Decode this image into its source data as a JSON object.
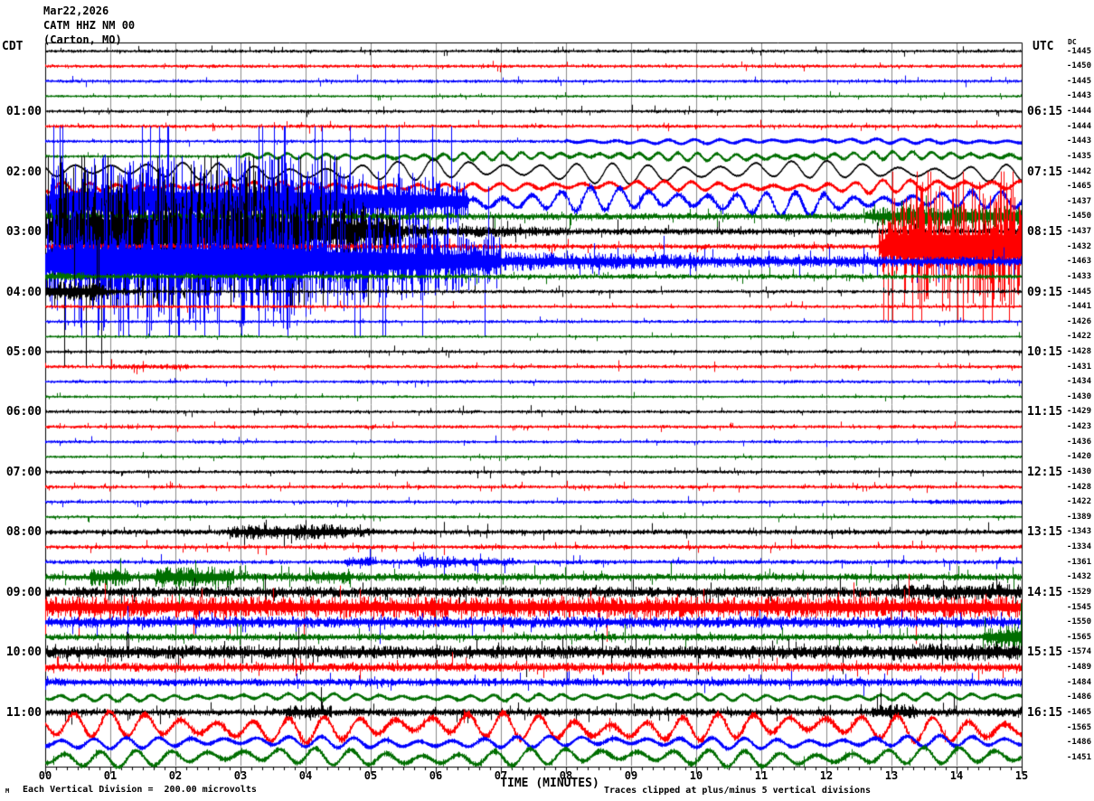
{
  "header": {
    "date": "Mar22,2026",
    "station": "CATM HHZ NM 00",
    "location": "(Carton, MO)"
  },
  "axes": {
    "left_tz": "CDT",
    "right_tz": "UTC",
    "dc_label": "DC",
    "x_title": "TIME (MINUTES)",
    "x_ticks": [
      "00",
      "01",
      "02",
      "03",
      "04",
      "05",
      "06",
      "07",
      "08",
      "09",
      "10",
      "11",
      "12",
      "13",
      "14",
      "15"
    ]
  },
  "footer": {
    "scale_note": "Each Vertical Division =  200.00 microvolts",
    "clip_note": "Traces clipped at plus/minus 5 vertical divisions",
    "watermark": "M"
  },
  "chart_data": {
    "type": "line",
    "kind": "helicorder-seismogram",
    "title": "CATM HHZ NM 00 (Carton, MO) Mar22,2026",
    "xlabel": "TIME (MINUTES)",
    "x_range_minutes": [
      0,
      15
    ],
    "minutes_per_row": 15,
    "rows_per_hour": 4,
    "clip_divisions": 5,
    "microvolts_per_division": 200,
    "grid_color": "#8c8c8c",
    "trace_color_cycle": [
      "#000000",
      "#ff0000",
      "#0000ff",
      "#006e00"
    ],
    "rows": [
      {
        "dc": -1445,
        "seg": [
          [
            0,
            15,
            1.8,
            1.8,
            "n"
          ]
        ]
      },
      {
        "dc": -1450,
        "seg": [
          [
            0,
            15,
            2.0,
            2.0,
            "n"
          ]
        ]
      },
      {
        "dc": -1445,
        "seg": [
          [
            0,
            15,
            1.9,
            1.9,
            "n"
          ]
        ]
      },
      {
        "dc": -1443,
        "seg": [
          [
            0,
            15,
            1.5,
            1.5,
            "n"
          ]
        ]
      },
      {
        "cdt": "01:00",
        "utc": "06:15",
        "dc": -1444,
        "seg": [
          [
            0,
            15,
            1.9,
            1.9,
            "n"
          ]
        ]
      },
      {
        "dc": -1444,
        "seg": [
          [
            0,
            15,
            2.1,
            2.1,
            "n"
          ]
        ]
      },
      {
        "dc": -1443,
        "p": 0.4,
        "seg": [
          [
            0,
            8,
            1.9,
            1.9,
            "n"
          ],
          [
            8,
            15,
            2.4,
            2.4,
            "o"
          ]
        ]
      },
      {
        "dc": -1435,
        "p": 0.3,
        "seg": [
          [
            0,
            3,
            1.8,
            1.8,
            "n"
          ],
          [
            3,
            6,
            2.5,
            4,
            "o"
          ],
          [
            6,
            15,
            4.2,
            4.2,
            "o"
          ]
        ]
      },
      {
        "cdt": "02:00",
        "utc": "07:15",
        "dc": -1442,
        "p": 0.55,
        "seg": [
          [
            0,
            5.5,
            9,
            10,
            "w"
          ],
          [
            5.5,
            11,
            11.5,
            11.5,
            "w"
          ],
          [
            11,
            15,
            9.5,
            9.5,
            "w"
          ]
        ]
      },
      {
        "dc": -1465,
        "p": 0.42,
        "seg": [
          [
            0,
            1,
            6,
            5,
            "o"
          ],
          [
            1,
            7,
            4,
            4,
            "o"
          ],
          [
            7,
            12.5,
            5,
            5,
            "o"
          ],
          [
            12.5,
            15,
            7,
            7,
            "o"
          ]
        ]
      },
      {
        "dc": -1437,
        "p": 0.45,
        "seg": [
          [
            0,
            0.3,
            25,
            45,
            "s"
          ],
          [
            0.3,
            4.5,
            50,
            50,
            "s"
          ],
          [
            4.5,
            6.5,
            40,
            22,
            "s"
          ],
          [
            6.5,
            8,
            11,
            10,
            "o"
          ],
          [
            8,
            12,
            13,
            13,
            "o"
          ],
          [
            12,
            15,
            9,
            9,
            "o"
          ]
        ]
      },
      {
        "dc": -1450,
        "seg": [
          [
            0,
            1,
            5,
            4,
            "n"
          ],
          [
            1,
            12.6,
            4,
            4,
            "n"
          ],
          [
            12.6,
            13.2,
            8,
            14,
            "n"
          ],
          [
            13.2,
            15,
            14,
            12,
            "n"
          ]
        ]
      },
      {
        "cdt": "03:00",
        "utc": "08:15",
        "dc": -1437,
        "seg": [
          [
            0,
            0.2,
            35,
            70,
            "s"
          ],
          [
            0.2,
            3.5,
            75,
            75,
            "s"
          ],
          [
            3.5,
            5.5,
            60,
            22,
            "s"
          ],
          [
            5.5,
            8,
            8,
            5,
            "n"
          ],
          [
            8,
            15,
            4,
            3.5,
            "n"
          ]
        ]
      },
      {
        "dc": -1432,
        "seg": [
          [
            0,
            6,
            3.5,
            3.5,
            "n"
          ],
          [
            6,
            12.8,
            3,
            3,
            "n"
          ],
          [
            12.8,
            13.1,
            20,
            60,
            "s"
          ],
          [
            13.1,
            15,
            70,
            70,
            "s"
          ]
        ]
      },
      {
        "dc": -1463,
        "seg": [
          [
            0,
            0.2,
            40,
            70,
            "s"
          ],
          [
            0.2,
            4,
            75,
            75,
            "s"
          ],
          [
            4,
            7,
            60,
            28,
            "s"
          ],
          [
            7,
            10,
            11,
            8,
            "n"
          ],
          [
            10,
            15,
            7,
            6,
            "n"
          ]
        ]
      },
      {
        "dc": -1433,
        "seg": [
          [
            0,
            0.6,
            6,
            5,
            "n"
          ],
          [
            0.6,
            15,
            3,
            2.8,
            "n"
          ]
        ]
      },
      {
        "cdt": "04:00",
        "utc": "09:15",
        "dc": -1445,
        "seg": [
          [
            0,
            0.9,
            10,
            8,
            "s"
          ],
          [
            0.9,
            1.5,
            5,
            3,
            "n"
          ],
          [
            1.5,
            15,
            2,
            2,
            "n"
          ]
        ]
      },
      {
        "dc": -1441,
        "seg": [
          [
            0,
            15,
            1.9,
            1.9,
            "n"
          ]
        ]
      },
      {
        "dc": -1426,
        "seg": [
          [
            0,
            15,
            1.8,
            1.8,
            "n"
          ]
        ]
      },
      {
        "dc": -1422,
        "seg": [
          [
            0,
            15,
            1.5,
            1.5,
            "n"
          ]
        ]
      },
      {
        "cdt": "05:00",
        "utc": "10:15",
        "dc": -1428,
        "seg": [
          [
            0,
            15,
            1.9,
            1.9,
            "n"
          ]
        ]
      },
      {
        "dc": -1431,
        "seg": [
          [
            0,
            1,
            2,
            2,
            "n"
          ],
          [
            1,
            2.2,
            3,
            3,
            "n"
          ],
          [
            2.2,
            15,
            2,
            2,
            "n"
          ]
        ]
      },
      {
        "dc": -1434,
        "seg": [
          [
            0,
            15,
            1.8,
            1.8,
            "n"
          ]
        ]
      },
      {
        "dc": -1430,
        "seg": [
          [
            0,
            15,
            1.5,
            1.5,
            "n"
          ]
        ]
      },
      {
        "cdt": "06:00",
        "utc": "11:15",
        "dc": -1429,
        "seg": [
          [
            0,
            15,
            1.9,
            1.9,
            "n"
          ]
        ]
      },
      {
        "dc": -1423,
        "seg": [
          [
            0,
            15,
            2.0,
            2.0,
            "n"
          ]
        ]
      },
      {
        "dc": -1436,
        "seg": [
          [
            0,
            15,
            1.8,
            1.8,
            "n"
          ]
        ]
      },
      {
        "dc": -1420,
        "seg": [
          [
            0,
            15,
            1.6,
            1.6,
            "n"
          ]
        ]
      },
      {
        "cdt": "07:00",
        "utc": "12:15",
        "dc": -1430,
        "seg": [
          [
            0,
            15,
            2.0,
            2.0,
            "n"
          ]
        ]
      },
      {
        "dc": -1428,
        "seg": [
          [
            0,
            15,
            2.1,
            2.1,
            "n"
          ]
        ]
      },
      {
        "dc": -1422,
        "seg": [
          [
            0,
            13.5,
            1.9,
            1.9,
            "n"
          ],
          [
            13.5,
            15,
            2.8,
            2.8,
            "n"
          ]
        ]
      },
      {
        "dc": -1389,
        "seg": [
          [
            0,
            15,
            1.7,
            1.7,
            "n"
          ]
        ]
      },
      {
        "cdt": "08:00",
        "utc": "13:15",
        "dc": -1343,
        "seg": [
          [
            0,
            2.8,
            3,
            3,
            "n"
          ],
          [
            2.8,
            3.2,
            6,
            9,
            "n"
          ],
          [
            3.2,
            4.6,
            9,
            9,
            "n"
          ],
          [
            4.6,
            5.2,
            7,
            4,
            "n"
          ],
          [
            5.2,
            15,
            3,
            3,
            "n"
          ]
        ]
      },
      {
        "dc": -1334,
        "seg": [
          [
            0,
            15,
            2.4,
            2.4,
            "n"
          ]
        ]
      },
      {
        "dc": -1361,
        "seg": [
          [
            0,
            4.6,
            2.4,
            2.4,
            "n"
          ],
          [
            4.6,
            5.1,
            6,
            6,
            "n"
          ],
          [
            5.1,
            5.7,
            3,
            3,
            "n"
          ],
          [
            5.7,
            6.3,
            7,
            7,
            "n"
          ],
          [
            6.3,
            7.2,
            5,
            5,
            "n"
          ],
          [
            7.2,
            15,
            2.6,
            2.6,
            "n"
          ]
        ]
      },
      {
        "dc": -1432,
        "seg": [
          [
            0,
            0.7,
            4,
            4,
            "n"
          ],
          [
            0.7,
            1.3,
            10,
            10,
            "n"
          ],
          [
            1.3,
            1.7,
            5,
            5,
            "n"
          ],
          [
            1.7,
            2.9,
            12,
            12,
            "n"
          ],
          [
            2.9,
            4.1,
            5,
            5,
            "n"
          ],
          [
            4.1,
            4.7,
            8,
            8,
            "n"
          ],
          [
            4.7,
            15,
            4.5,
            4,
            "n"
          ]
        ]
      },
      {
        "cdt": "09:00",
        "utc": "14:15",
        "dc": -1529,
        "seg": [
          [
            0,
            13,
            6,
            6,
            "n"
          ],
          [
            13,
            15,
            9,
            9,
            "n"
          ]
        ]
      },
      {
        "dc": -1545,
        "seg": [
          [
            0,
            15,
            12,
            12,
            "n"
          ]
        ]
      },
      {
        "dc": -1550,
        "seg": [
          [
            0,
            15,
            6.5,
            6.5,
            "n"
          ]
        ]
      },
      {
        "dc": -1565,
        "seg": [
          [
            0,
            14.4,
            4,
            4,
            "n"
          ],
          [
            14.4,
            15,
            10,
            16,
            "n"
          ]
        ]
      },
      {
        "cdt": "10:00",
        "utc": "15:15",
        "dc": -1574,
        "seg": [
          [
            0,
            13,
            7.5,
            7.5,
            "n"
          ],
          [
            13,
            15,
            10,
            10,
            "n"
          ]
        ]
      },
      {
        "dc": -1489,
        "seg": [
          [
            0,
            15,
            5,
            5,
            "n"
          ]
        ]
      },
      {
        "dc": -1484,
        "seg": [
          [
            0,
            15,
            4.5,
            4.5,
            "n"
          ]
        ]
      },
      {
        "dc": -1486,
        "p": 0.35,
        "seg": [
          [
            0,
            15,
            3.5,
            3.5,
            "o"
          ]
        ]
      },
      {
        "cdt": "11:00",
        "utc": "16:15",
        "dc": -1465,
        "seg": [
          [
            0,
            3.7,
            4,
            4,
            "n"
          ],
          [
            3.7,
            4.4,
            8,
            8,
            "n"
          ],
          [
            4.4,
            12.7,
            4.5,
            4.5,
            "n"
          ],
          [
            12.7,
            13.4,
            9,
            9,
            "n"
          ],
          [
            13.4,
            15,
            5,
            5,
            "n"
          ]
        ]
      },
      {
        "dc": -1565,
        "p": 0.55,
        "seg": [
          [
            0,
            15,
            14,
            14,
            "o"
          ]
        ]
      },
      {
        "dc": -1486,
        "p": 0.5,
        "seg": [
          [
            0,
            15,
            6,
            6,
            "o"
          ]
        ]
      },
      {
        "dc": -1451,
        "p": 0.55,
        "seg": [
          [
            0,
            15,
            9,
            9,
            "o"
          ]
        ]
      }
    ]
  }
}
